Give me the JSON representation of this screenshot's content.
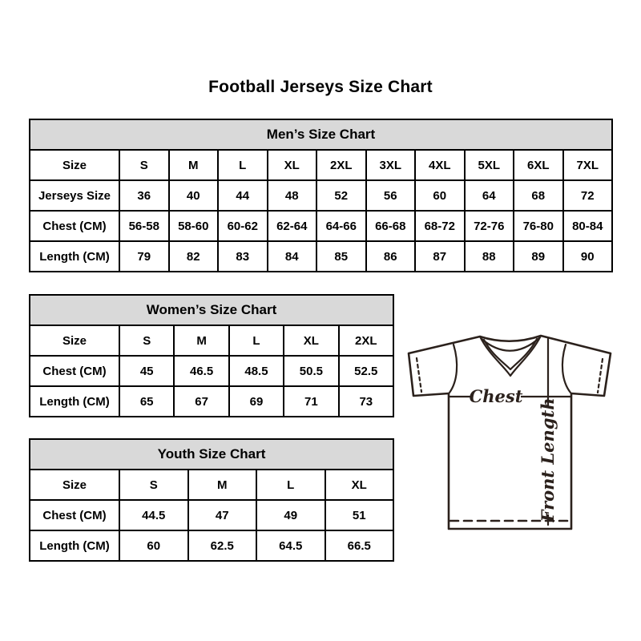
{
  "page": {
    "title": "Football Jerseys Size Chart"
  },
  "tables": [
    {
      "id": "mens",
      "title": "Men’s Size Chart",
      "rows": [
        [
          "Size",
          "S",
          "M",
          "L",
          "XL",
          "2XL",
          "3XL",
          "4XL",
          "5XL",
          "6XL",
          "7XL"
        ],
        [
          "Jerseys Size",
          "36",
          "40",
          "44",
          "48",
          "52",
          "56",
          "60",
          "64",
          "68",
          "72"
        ],
        [
          "Chest (CM)",
          "56-58",
          "58-60",
          "60-62",
          "62-64",
          "64-66",
          "66-68",
          "68-72",
          "72-76",
          "76-80",
          "80-84"
        ],
        [
          "Length (CM)",
          "79",
          "82",
          "83",
          "84",
          "85",
          "86",
          "87",
          "88",
          "89",
          "90"
        ]
      ]
    },
    {
      "id": "womens",
      "title": "Women’s Size Chart",
      "rows": [
        [
          "Size",
          "S",
          "M",
          "L",
          "XL",
          "2XL"
        ],
        [
          "Chest (CM)",
          "45",
          "46.5",
          "48.5",
          "50.5",
          "52.5"
        ],
        [
          "Length (CM)",
          "65",
          "67",
          "69",
          "71",
          "73"
        ]
      ]
    },
    {
      "id": "youth",
      "title": "Youth Size Chart",
      "rows": [
        [
          "Size",
          "S",
          "M",
          "L",
          "XL"
        ],
        [
          "Chest (CM)",
          "44.5",
          "47",
          "49",
          "51"
        ],
        [
          "Length (CM)",
          "60",
          "62.5",
          "64.5",
          "66.5"
        ]
      ]
    }
  ],
  "diagram": {
    "chest_label": "Chest",
    "front_length_label": "Front Length"
  },
  "colors": {
    "table_border": "#000000",
    "header_bg": "#d9d9d9",
    "sketch_line": "#2b211c",
    "text": "#000000",
    "background": "#ffffff"
  }
}
